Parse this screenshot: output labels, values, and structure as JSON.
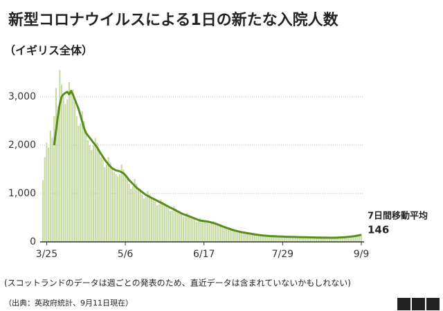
{
  "chart_data": {
    "type": "bar",
    "title": "新型コロナウイルスによる1日の新たな入院人数",
    "subtitle": "（イギリス全体）",
    "note": "(スコットランドのデータは週ごとの発表のため、直近データは含まれていないかもしれない)",
    "source": "（出典：英政府統計、9月11日現在）",
    "logo": "BBC",
    "x": [
      "3/23",
      "3/24",
      "3/25",
      "3/26",
      "3/27",
      "3/28",
      "3/29",
      "3/30",
      "3/31",
      "4/1",
      "4/2",
      "4/3",
      "4/4",
      "4/5",
      "4/6",
      "4/7",
      "4/8",
      "4/9",
      "4/10",
      "4/11",
      "4/12",
      "4/13",
      "4/14",
      "4/15",
      "4/16",
      "4/17",
      "4/18",
      "4/19",
      "4/20",
      "4/21",
      "4/22",
      "4/23",
      "4/24",
      "4/25",
      "4/26",
      "4/27",
      "4/28",
      "4/29",
      "4/30",
      "5/1",
      "5/2",
      "5/3",
      "5/4",
      "5/5",
      "5/6",
      "5/7",
      "5/8",
      "5/9",
      "5/10",
      "5/11",
      "5/12",
      "5/13",
      "5/14",
      "5/15",
      "5/16",
      "5/17",
      "5/18",
      "5/19",
      "5/20",
      "5/21",
      "5/22",
      "5/23",
      "5/24",
      "5/25",
      "5/26",
      "5/27",
      "5/28",
      "5/29",
      "5/30",
      "5/31",
      "6/1",
      "6/2",
      "6/3",
      "6/4",
      "6/5",
      "6/6",
      "6/7",
      "6/8",
      "6/9",
      "6/10",
      "6/11",
      "6/12",
      "6/13",
      "6/14",
      "6/15",
      "6/16",
      "6/17",
      "6/18",
      "6/19",
      "6/20",
      "6/21",
      "6/22",
      "6/23",
      "6/24",
      "6/25",
      "6/26",
      "6/27",
      "6/28",
      "6/29",
      "6/30",
      "7/1",
      "7/2",
      "7/3",
      "7/4",
      "7/5",
      "7/6",
      "7/7",
      "7/8",
      "7/9",
      "7/10",
      "7/11",
      "7/12",
      "7/13",
      "7/14",
      "7/15",
      "7/16",
      "7/17",
      "7/18",
      "7/19",
      "7/20",
      "7/21",
      "7/22",
      "7/23",
      "7/24",
      "7/25",
      "7/26",
      "7/27",
      "7/28",
      "7/29",
      "7/30",
      "7/31",
      "8/1",
      "8/2",
      "8/3",
      "8/4",
      "8/5",
      "8/6",
      "8/7",
      "8/8",
      "8/9",
      "8/10",
      "8/11",
      "8/12",
      "8/13",
      "8/14",
      "8/15",
      "8/16",
      "8/17",
      "8/18",
      "8/19",
      "8/20",
      "8/21",
      "8/22",
      "8/23",
      "8/24",
      "8/25",
      "8/26",
      "8/27",
      "8/28",
      "8/29",
      "8/30",
      "8/31",
      "9/1",
      "9/2",
      "9/3",
      "9/4",
      "9/5",
      "9/6",
      "9/7",
      "9/8",
      "9/9"
    ],
    "xticks": [
      "3/25",
      "5/6",
      "6/17",
      "7/29",
      "9/9"
    ],
    "ylim": [
      0,
      3600
    ],
    "yticks": [
      0,
      {
        "value": 1000,
        "label": "1,000"
      },
      {
        "value": 2000,
        "label": "2,000"
      },
      {
        "value": 3000,
        "label": "3,000"
      }
    ],
    "grid": true,
    "series": [
      {
        "type": "bar",
        "color": "#c6daa3",
        "values": [
          1280,
          1750,
          2050,
          1950,
          2300,
          2150,
          2600,
          3180,
          2800,
          3550,
          3250,
          3000,
          2850,
          2950,
          3300,
          3100,
          3150,
          2900,
          2600,
          2400,
          2450,
          2700,
          2500,
          2300,
          2100,
          2000,
          1900,
          2000,
          2150,
          2050,
          1900,
          1750,
          1700,
          1550,
          1600,
          1750,
          1650,
          1500,
          1450,
          1400,
          1350,
          1400,
          1600,
          1500,
          1400,
          1300,
          1200,
          1100,
          1150,
          1300,
          1200,
          1100,
          1050,
          980,
          900,
          920,
          1050,
          980,
          920,
          880,
          830,
          760,
          780,
          880,
          830,
          790,
          750,
          700,
          640,
          650,
          740,
          690,
          650,
          610,
          570,
          520,
          530,
          600,
          560,
          530,
          500,
          470,
          420,
          430,
          490,
          460,
          440,
          430,
          410,
          370,
          380,
          430,
          400,
          370,
          350,
          320,
          290,
          290,
          320,
          300,
          270,
          250,
          230,
          210,
          210,
          230,
          210,
          200,
          190,
          175,
          160,
          165,
          175,
          165,
          155,
          145,
          135,
          125,
          130,
          140,
          130,
          125,
          120,
          115,
          110,
          110,
          120,
          115,
          110,
          108,
          104,
          100,
          98,
          112,
          108,
          104,
          100,
          96,
          93,
          92,
          104,
          100,
          96,
          92,
          90,
          86,
          85,
          98,
          94,
          90,
          86,
          84,
          82,
          82,
          94,
          90,
          88,
          90,
          92,
          90,
          92,
          105,
          112,
          106,
          110,
          114,
          116,
          118,
          135,
          140,
          160
        ]
      },
      {
        "type": "line",
        "name": "7日間移動平均",
        "color": "#5a8c1c",
        "values": [
          null,
          null,
          null,
          null,
          null,
          null,
          2000,
          2300,
          2600,
          2850,
          3000,
          3050,
          3080,
          3100,
          3050,
          3120,
          3050,
          2950,
          2850,
          2750,
          2620,
          2480,
          2350,
          2250,
          2200,
          2150,
          2100,
          2050,
          2000,
          1950,
          1880,
          1820,
          1760,
          1700,
          1650,
          1600,
          1560,
          1520,
          1500,
          1480,
          1470,
          1460,
          1440,
          1420,
          1380,
          1330,
          1280,
          1240,
          1200,
          1160,
          1120,
          1090,
          1060,
          1030,
          1000,
          970,
          950,
          930,
          910,
          890,
          870,
          850,
          830,
          810,
          790,
          770,
          750,
          730,
          710,
          690,
          670,
          650,
          630,
          610,
          590,
          570,
          560,
          545,
          530,
          515,
          500,
          485,
          470,
          455,
          440,
          435,
          430,
          425,
          420,
          410,
          400,
          390,
          380,
          365,
          350,
          335,
          320,
          305,
          290,
          280,
          265,
          250,
          240,
          230,
          220,
          210,
          200,
          195,
          190,
          180,
          175,
          170,
          160,
          155,
          150,
          145,
          140,
          135,
          130,
          128,
          125,
          122,
          120,
          118,
          116,
          114,
          112,
          110,
          110,
          108,
          106,
          105,
          104,
          103,
          102,
          101,
          100,
          99,
          98,
          97,
          96,
          95,
          94,
          93,
          92,
          91,
          90,
          90,
          89,
          88,
          88,
          87,
          87,
          86,
          86,
          86,
          87,
          88,
          90,
          92,
          94,
          97,
          100,
          104,
          108,
          112,
          117,
          123,
          130,
          138,
          146
        ]
      }
    ]
  }
}
